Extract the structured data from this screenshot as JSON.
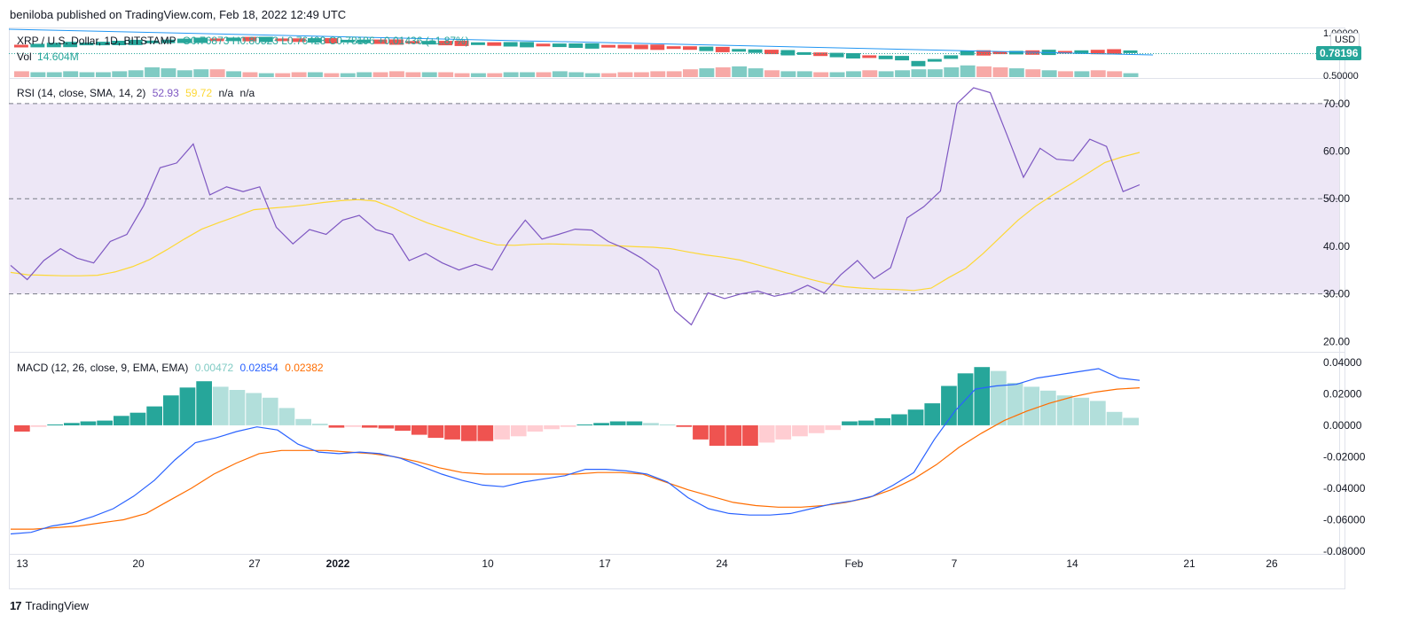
{
  "header": {
    "published": "beniloba published on TradingView.com, Feb 18, 2022 12:49 UTC"
  },
  "footer": {
    "logo_text": "TradingView",
    "logo_mark": "17"
  },
  "price_pane": {
    "symbol": "XRP / U.S. Dollar, 1D, BITSTAMP",
    "open": "O0.76873",
    "high": "H0.80523",
    "low": "L0.76423",
    "close": "C0.78196",
    "change": "+0.01436 (+1.87%)",
    "vol_label": "Vol",
    "vol_value": "14.604M",
    "currency": "USD",
    "last_price": "0.78196",
    "axis_top": "1.00000",
    "axis_bottom": "0.50000"
  },
  "rsi_pane": {
    "label": "RSI (14, close, SMA, 14, 2)",
    "value": "52.93",
    "sma_value": "59.72",
    "na1": "n/a",
    "na2": "n/a"
  },
  "macd_pane": {
    "label": "MACD (12, 26, close, 9, EMA, EMA)",
    "hist_value": "0.00472",
    "macd_value": "0.02854",
    "signal_value": "0.02382"
  },
  "colors": {
    "up": "#26a69a",
    "down": "#ef5350",
    "up_light": "#b2dfdb",
    "down_light": "#ffcdd2",
    "rsi": "#7e57c2",
    "rsi_ma": "#fdd835",
    "macd": "#2962ff",
    "signal": "#ff6d00",
    "rsi_band": "#ede7f6",
    "trendline": "#2196f3"
  },
  "chart_data": [
    {
      "type": "line",
      "title": "RSI (14, close, SMA, 14, 2)",
      "y_ticks": [
        "70.00",
        "60.00",
        "50.00",
        "40.00",
        "30.00",
        "20.00"
      ],
      "ylim": [
        18,
        75
      ],
      "bands": [
        30,
        50,
        70
      ],
      "x_ticks": [
        "13",
        "20",
        "27",
        "2022",
        "10",
        "17",
        "24",
        "Feb",
        "7",
        "14",
        "21",
        "26"
      ],
      "series": [
        {
          "name": "RSI",
          "values": [
            36,
            33,
            37,
            39.5,
            37.5,
            36.5,
            41,
            42.5,
            48.5,
            56.5,
            57.5,
            61.5,
            50.8,
            52.5,
            51.5,
            52.5,
            44,
            40.5,
            43.5,
            42.5,
            45.5,
            46.5,
            43.5,
            42.5,
            37,
            38.5,
            36.5,
            35,
            36.2,
            35,
            41,
            45.5,
            41.5,
            42.5,
            43.6,
            43.4,
            41,
            39.5,
            37.5,
            35,
            26.5,
            23.5,
            30.2,
            29,
            30,
            30.6,
            29.5,
            30.2,
            31.8,
            30.2,
            34,
            37,
            33.2,
            35.5,
            46,
            48.3,
            51.6,
            70,
            73.3,
            72.3,
            63.5,
            54.5,
            60.6,
            58.3,
            58,
            62.5,
            61,
            51.5,
            52.93
          ]
        },
        {
          "name": "RSI-based MA",
          "values": [
            34.5,
            34,
            33.9,
            33.8,
            33.8,
            33.9,
            34.6,
            35.7,
            37.2,
            39.3,
            41.5,
            43.6,
            45,
            46.3,
            47.7,
            48,
            48.3,
            48.7,
            49.2,
            49.6,
            49.8,
            49.5,
            48.1,
            46.4,
            44.9,
            43.7,
            42.5,
            41.3,
            40.3,
            40.2,
            40.4,
            40.5,
            40.4,
            40.3,
            40.2,
            40.1,
            39.9,
            39.8,
            39.5,
            38.8,
            38.2,
            37.7,
            37.1,
            36.1,
            35.1,
            34.1,
            33.1,
            32.2,
            31.5,
            31.2,
            31.0,
            30.9,
            30.7,
            31.2,
            33.4,
            35.4,
            38.5,
            42,
            45.5,
            48.4,
            50.8,
            53,
            55.3,
            57.6,
            58.8,
            59.72
          ]
        }
      ]
    },
    {
      "type": "bar",
      "title": "MACD (12, 26, close, 9, EMA, EMA)",
      "y_ticks": [
        "0.04000",
        "0.02000",
        "0.00000",
        "-0.02000",
        "-0.04000",
        "-0.06000",
        "-0.08000"
      ],
      "ylim": [
        -0.08,
        0.045
      ],
      "series": [
        {
          "name": "Histogram",
          "values": [
            -0.004,
            -0.001,
            0.0005,
            0.0015,
            0.0025,
            0.003,
            0.006,
            0.008,
            0.012,
            0.019,
            0.024,
            0.028,
            0.0245,
            0.0225,
            0.0205,
            0.0175,
            0.011,
            0.004,
            0.001,
            -0.0015,
            -0.001,
            -0.0015,
            -0.002,
            -0.0035,
            -0.006,
            -0.008,
            -0.009,
            -0.01,
            -0.01,
            -0.009,
            -0.007,
            -0.004,
            -0.0025,
            -0.001,
            0.0005,
            0.0015,
            0.0025,
            0.0025,
            0.0015,
            0.0005,
            -0.001,
            -0.009,
            -0.013,
            -0.013,
            -0.013,
            -0.011,
            -0.009,
            -0.007,
            -0.005,
            -0.003,
            0.0025,
            0.003,
            0.0045,
            0.007,
            0.01,
            0.014,
            0.025,
            0.033,
            0.037,
            0.0345,
            0.027,
            0.0245,
            0.022,
            0.019,
            0.0175,
            0.0155,
            0.0085,
            0.00472
          ]
        },
        {
          "name": "MACD",
          "values": [
            -0.069,
            -0.068,
            -0.064,
            -0.062,
            -0.058,
            -0.053,
            -0.045,
            -0.035,
            -0.022,
            -0.011,
            -0.008,
            -0.004,
            -0.001,
            -0.003,
            -0.012,
            -0.017,
            -0.018,
            -0.017,
            -0.018,
            -0.021,
            -0.026,
            -0.031,
            -0.035,
            -0.038,
            -0.039,
            -0.036,
            -0.034,
            -0.032,
            -0.028,
            -0.028,
            -0.029,
            -0.031,
            -0.036,
            -0.046,
            -0.053,
            -0.056,
            -0.057,
            -0.057,
            -0.056,
            -0.053,
            -0.05,
            -0.048,
            -0.045,
            -0.038,
            -0.03,
            -0.009,
            0.009,
            0.023,
            0.025,
            0.026,
            0.03,
            0.032,
            0.034,
            0.036,
            0.03,
            0.02854
          ]
        },
        {
          "name": "Signal",
          "values": [
            -0.066,
            -0.066,
            -0.065,
            -0.064,
            -0.062,
            -0.06,
            -0.056,
            -0.048,
            -0.04,
            -0.031,
            -0.024,
            -0.018,
            -0.016,
            -0.016,
            -0.016,
            -0.017,
            -0.018,
            -0.02,
            -0.023,
            -0.027,
            -0.03,
            -0.031,
            -0.031,
            -0.031,
            -0.031,
            -0.031,
            -0.03,
            -0.03,
            -0.031,
            -0.036,
            -0.041,
            -0.045,
            -0.049,
            -0.051,
            -0.052,
            -0.052,
            -0.051,
            -0.049,
            -0.046,
            -0.041,
            -0.034,
            -0.025,
            -0.014,
            -0.005,
            0.003,
            0.009,
            0.014,
            0.018,
            0.021,
            0.023,
            0.02382
          ]
        }
      ]
    },
    {
      "type": "bar",
      "title": "XRP / U.S. Dollar, 1D, BITSTAMP",
      "series": [
        {
          "name": "Candle direction",
          "values": [
            -1,
            1,
            1,
            1,
            1,
            1,
            1,
            1,
            1,
            1,
            1,
            1,
            -1,
            1,
            -1,
            1,
            -1,
            -1,
            1,
            -1,
            1,
            1,
            -1,
            -1,
            -1,
            1,
            -1,
            -1,
            1,
            -1,
            1,
            1,
            -1,
            1,
            1,
            1,
            -1,
            -1,
            -1,
            -1,
            -1,
            -1,
            1,
            -1,
            1,
            1,
            -1,
            1,
            1,
            -1,
            1,
            1,
            -1,
            1,
            1,
            1,
            1,
            1,
            1,
            -1,
            -1,
            1,
            -1,
            1,
            -1,
            1,
            -1,
            -1,
            1
          ]
        },
        {
          "name": "Volume",
          "values": [
            6,
            5,
            5,
            6,
            5,
            5,
            6,
            7,
            10,
            9,
            7,
            8,
            8,
            6,
            5,
            4,
            4,
            5,
            5,
            4,
            4,
            5,
            5,
            6,
            5,
            5,
            5,
            4,
            4,
            4,
            5,
            5,
            5,
            6,
            5,
            4,
            4,
            5,
            5,
            6,
            6,
            8,
            9,
            10,
            11,
            9,
            7,
            6,
            6,
            5,
            5,
            6,
            7,
            6,
            7,
            8,
            8,
            10,
            12,
            11,
            10,
            9,
            8,
            7,
            6,
            6,
            7,
            6,
            4
          ]
        }
      ]
    }
  ]
}
